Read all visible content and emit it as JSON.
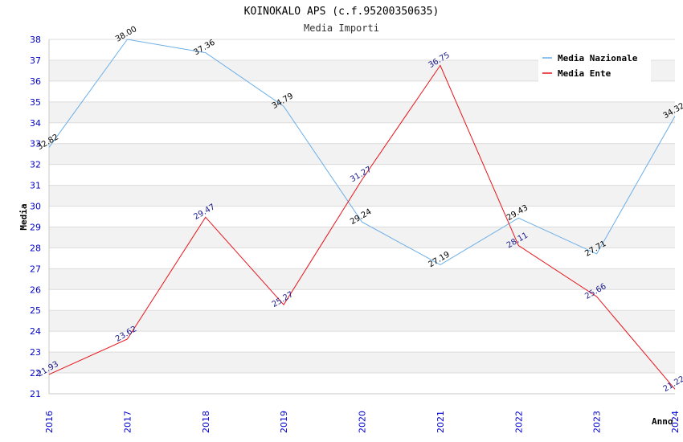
{
  "chart_data": {
    "type": "line",
    "title": "KOINOKALO APS (c.f.95200350635)",
    "subtitle": "Media Importi",
    "xlabel": "Anno",
    "ylabel": "Media",
    "ylim": [
      21,
      38
    ],
    "y_ticks": [
      "21",
      "22",
      "23",
      "24",
      "25",
      "26",
      "27",
      "28",
      "29",
      "30",
      "31",
      "32",
      "33",
      "34",
      "35",
      "36",
      "37",
      "38"
    ],
    "categories": [
      "2016",
      "2017",
      "2018",
      "2019",
      "2020",
      "2021",
      "2022",
      "2023",
      "2024"
    ],
    "legend_position": "top-right",
    "grid": true,
    "series": [
      {
        "name": "Media Nazionale",
        "color": "#6aaee8",
        "label_color": "#000000",
        "values": [
          32.82,
          38.0,
          37.36,
          34.79,
          29.24,
          27.19,
          29.43,
          27.71,
          34.32
        ],
        "labels": [
          "32.82",
          "38.00",
          "37.36",
          "34.79",
          "29.24",
          "27.19",
          "29.43",
          "27.71",
          "34.32"
        ]
      },
      {
        "name": "Media Ente",
        "color": "#e8141a",
        "label_color": "#1a1a8c",
        "values": [
          21.93,
          23.62,
          29.47,
          25.27,
          31.27,
          36.75,
          28.11,
          25.66,
          21.22
        ],
        "labels": [
          "21.93",
          "23.62",
          "29.47",
          "25.27",
          "31.27",
          "36.75",
          "28.11",
          "25.66",
          "21.22"
        ]
      }
    ]
  },
  "colors": {
    "band_even": "#f2f2f2",
    "band_odd": "#ffffff",
    "tick_text": "#0000cc",
    "axis_line": "#c8c8c8"
  }
}
